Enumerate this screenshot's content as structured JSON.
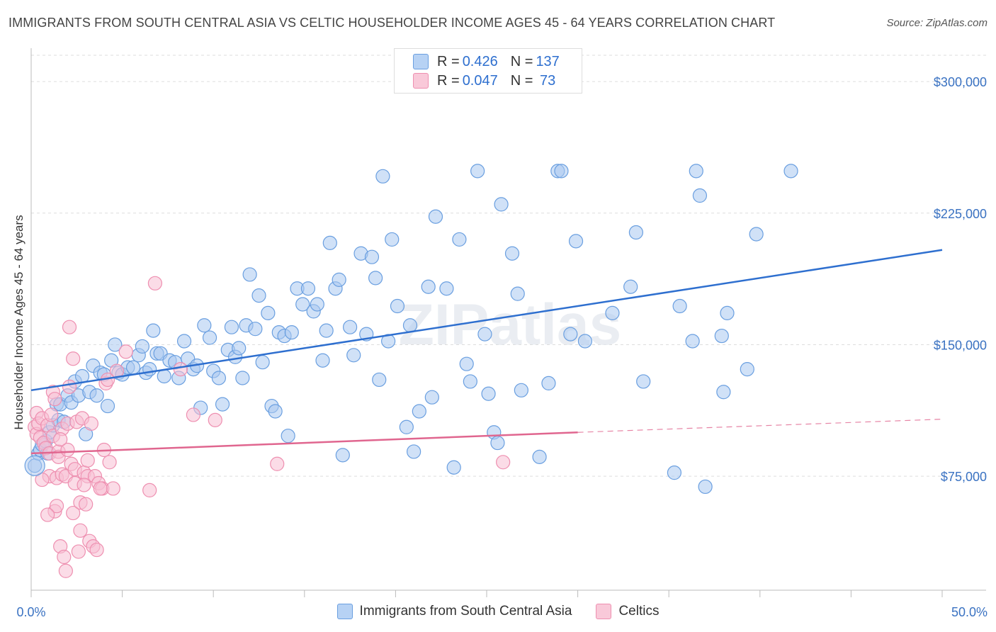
{
  "chart_data": {
    "type": "scatter",
    "title": "IMMIGRANTS FROM SOUTH CENTRAL ASIA VS CELTIC HOUSEHOLDER INCOME AGES 45 - 64 YEARS CORRELATION CHART",
    "source": "Source: ZipAtlas.com",
    "ylabel": "Householder Income Ages 45 - 64 years",
    "xlim": [
      0,
      50
    ],
    "ylim": [
      10000,
      315000
    ],
    "x_tick_labels": [
      "0.0%",
      "50.0%"
    ],
    "y_ticks": [
      {
        "value": 75000,
        "label": "$75,000"
      },
      {
        "value": 150000,
        "label": "$150,000"
      },
      {
        "value": 225000,
        "label": "$225,000"
      },
      {
        "value": 300000,
        "label": "$300,000"
      }
    ],
    "watermark": "ZIPatlas",
    "legend": [
      {
        "label": "R = ",
        "r": "0.426",
        "n_label": "N = ",
        "n": "137"
      },
      {
        "label": "R = ",
        "r": "0.047",
        "n_label": "N = ",
        "n": " 73"
      }
    ],
    "series": [
      {
        "name": "Immigrants from South Central Asia",
        "color": "#6a9fe0",
        "fill": "#a9c8f0",
        "line_color": "#2e6fcf",
        "trend": {
          "x0": 0,
          "y0": 124000,
          "x1": 50,
          "y1": 204000
        },
        "points": [
          [
            0.2,
            81000
          ],
          [
            0.4,
            88000
          ],
          [
            0.5,
            90000
          ],
          [
            0.6,
            93000
          ],
          [
            0.8,
            95000
          ],
          [
            0.9,
            88000
          ],
          [
            1.0,
            100000
          ],
          [
            1.2,
            104000
          ],
          [
            1.4,
            116000
          ],
          [
            1.5,
            107000
          ],
          [
            1.6,
            116000
          ],
          [
            1.8,
            106000
          ],
          [
            2.0,
            121000
          ],
          [
            2.2,
            117000
          ],
          [
            2.4,
            129000
          ],
          [
            2.6,
            121000
          ],
          [
            2.8,
            132000
          ],
          [
            3.0,
            99000
          ],
          [
            3.2,
            123000
          ],
          [
            3.4,
            138000
          ],
          [
            3.6,
            121000
          ],
          [
            3.8,
            134000
          ],
          [
            4.0,
            133000
          ],
          [
            4.2,
            115000
          ],
          [
            4.4,
            141000
          ],
          [
            4.6,
            150000
          ],
          [
            4.8,
            134000
          ],
          [
            5.0,
            133000
          ],
          [
            5.3,
            137000
          ],
          [
            5.6,
            137000
          ],
          [
            5.9,
            144000
          ],
          [
            6.1,
            149000
          ],
          [
            6.3,
            134000
          ],
          [
            6.5,
            136000
          ],
          [
            6.7,
            158000
          ],
          [
            6.9,
            145000
          ],
          [
            7.1,
            145000
          ],
          [
            7.3,
            132000
          ],
          [
            7.6,
            141000
          ],
          [
            7.9,
            140000
          ],
          [
            8.1,
            131000
          ],
          [
            8.4,
            152000
          ],
          [
            8.6,
            142000
          ],
          [
            8.9,
            136000
          ],
          [
            9.1,
            138000
          ],
          [
            9.3,
            114000
          ],
          [
            9.5,
            161000
          ],
          [
            9.8,
            154000
          ],
          [
            10.0,
            135000
          ],
          [
            10.3,
            131000
          ],
          [
            10.5,
            116000
          ],
          [
            10.8,
            147000
          ],
          [
            11.0,
            160000
          ],
          [
            11.2,
            143000
          ],
          [
            11.4,
            148000
          ],
          [
            11.6,
            131000
          ],
          [
            11.8,
            161000
          ],
          [
            12.0,
            190000
          ],
          [
            12.3,
            159000
          ],
          [
            12.5,
            178000
          ],
          [
            12.7,
            140000
          ],
          [
            13.0,
            168000
          ],
          [
            13.2,
            115000
          ],
          [
            13.4,
            112000
          ],
          [
            13.6,
            157000
          ],
          [
            13.9,
            155000
          ],
          [
            14.1,
            98000
          ],
          [
            14.3,
            157000
          ],
          [
            14.6,
            182000
          ],
          [
            14.9,
            173000
          ],
          [
            15.2,
            182000
          ],
          [
            15.5,
            169000
          ],
          [
            15.7,
            173000
          ],
          [
            16.0,
            141000
          ],
          [
            16.2,
            158000
          ],
          [
            16.4,
            208000
          ],
          [
            16.7,
            182000
          ],
          [
            16.9,
            187000
          ],
          [
            17.1,
            87000
          ],
          [
            17.5,
            160000
          ],
          [
            17.7,
            144000
          ],
          [
            18.1,
            202000
          ],
          [
            18.4,
            156000
          ],
          [
            18.7,
            200000
          ],
          [
            18.9,
            188000
          ],
          [
            19.1,
            130000
          ],
          [
            19.3,
            246000
          ],
          [
            19.6,
            152000
          ],
          [
            19.8,
            210000
          ],
          [
            20.1,
            172000
          ],
          [
            20.6,
            103000
          ],
          [
            20.8,
            161000
          ],
          [
            21.0,
            89000
          ],
          [
            21.3,
            112000
          ],
          [
            21.8,
            183000
          ],
          [
            22.0,
            120000
          ],
          [
            22.2,
            223000
          ],
          [
            22.8,
            182000
          ],
          [
            23.2,
            80000
          ],
          [
            23.5,
            210000
          ],
          [
            23.9,
            139000
          ],
          [
            24.1,
            129000
          ],
          [
            24.5,
            249000
          ],
          [
            24.9,
            156000
          ],
          [
            25.1,
            122000
          ],
          [
            25.4,
            100000
          ],
          [
            25.6,
            94000
          ],
          [
            25.8,
            230000
          ],
          [
            26.4,
            202000
          ],
          [
            26.7,
            179000
          ],
          [
            26.9,
            124000
          ],
          [
            27.9,
            86000
          ],
          [
            28.4,
            128000
          ],
          [
            28.9,
            249000
          ],
          [
            29.1,
            249000
          ],
          [
            29.6,
            156000
          ],
          [
            29.9,
            209000
          ],
          [
            30.4,
            152000
          ],
          [
            31.9,
            168000
          ],
          [
            32.9,
            183000
          ],
          [
            33.2,
            214000
          ],
          [
            33.6,
            129000
          ],
          [
            35.3,
            77000
          ],
          [
            35.6,
            172000
          ],
          [
            36.3,
            152000
          ],
          [
            36.5,
            249000
          ],
          [
            36.7,
            235000
          ],
          [
            37.0,
            69000
          ],
          [
            37.9,
            155000
          ],
          [
            38.0,
            123000
          ],
          [
            38.2,
            168000
          ],
          [
            39.3,
            136000
          ],
          [
            39.8,
            213000
          ],
          [
            41.7,
            249000
          ]
        ]
      },
      {
        "name": "Celtics",
        "color": "#ee8fb0",
        "fill": "#f7bfd3",
        "line_color": "#e0668f",
        "trend": {
          "x0": 0,
          "y0": 88000,
          "x1": 30,
          "y1": 100000
        },
        "trend_dashed": {
          "x0": 30,
          "y0": 100000,
          "x1": 50,
          "y1": 107500
        },
        "points": [
          [
            0.2,
            103000
          ],
          [
            0.3,
            111000
          ],
          [
            0.3,
            99000
          ],
          [
            0.4,
            105000
          ],
          [
            0.5,
            97000
          ],
          [
            0.6,
            108000
          ],
          [
            0.7,
            94000
          ],
          [
            0.8,
            91000
          ],
          [
            0.9,
            104000
          ],
          [
            1.0,
            88000
          ],
          [
            1.0,
            75000
          ],
          [
            1.1,
            110000
          ],
          [
            1.2,
            98000
          ],
          [
            1.2,
            123000
          ],
          [
            1.3,
            119000
          ],
          [
            1.3,
            55000
          ],
          [
            1.4,
            58000
          ],
          [
            1.4,
            74000
          ],
          [
            1.5,
            89000
          ],
          [
            1.5,
            86000
          ],
          [
            1.6,
            35000
          ],
          [
            1.7,
            102000
          ],
          [
            1.7,
            76000
          ],
          [
            1.8,
            29000
          ],
          [
            1.9,
            21000
          ],
          [
            1.9,
            75000
          ],
          [
            2.0,
            105000
          ],
          [
            2.0,
            90000
          ],
          [
            2.1,
            126000
          ],
          [
            2.1,
            160000
          ],
          [
            2.2,
            82000
          ],
          [
            2.3,
            142000
          ],
          [
            2.3,
            54000
          ],
          [
            2.4,
            71000
          ],
          [
            2.4,
            79000
          ],
          [
            2.5,
            106000
          ],
          [
            2.6,
            32000
          ],
          [
            2.7,
            44000
          ],
          [
            2.7,
            60000
          ],
          [
            2.8,
            108000
          ],
          [
            2.9,
            77000
          ],
          [
            3.0,
            59000
          ],
          [
            3.1,
            75000
          ],
          [
            3.1,
            84000
          ],
          [
            3.2,
            38000
          ],
          [
            3.3,
            105000
          ],
          [
            3.4,
            35000
          ],
          [
            3.5,
            75000
          ],
          [
            3.7,
            71000
          ],
          [
            3.9,
            68000
          ],
          [
            4.0,
            90000
          ],
          [
            4.1,
            128000
          ],
          [
            4.3,
            83000
          ],
          [
            4.5,
            68000
          ],
          [
            4.7,
            135000
          ],
          [
            5.2,
            146000
          ],
          [
            6.5,
            67000
          ],
          [
            6.8,
            185000
          ],
          [
            8.2,
            136000
          ],
          [
            8.9,
            110000
          ],
          [
            10.1,
            107000
          ],
          [
            13.5,
            82000
          ],
          [
            25.9,
            83000
          ],
          [
            4.2,
            130000
          ],
          [
            3.6,
            33000
          ],
          [
            1.6,
            96000
          ],
          [
            0.9,
            53000
          ],
          [
            2.9,
            70000
          ],
          [
            0.6,
            73000
          ],
          [
            3.8,
            68000
          ]
        ]
      }
    ]
  }
}
